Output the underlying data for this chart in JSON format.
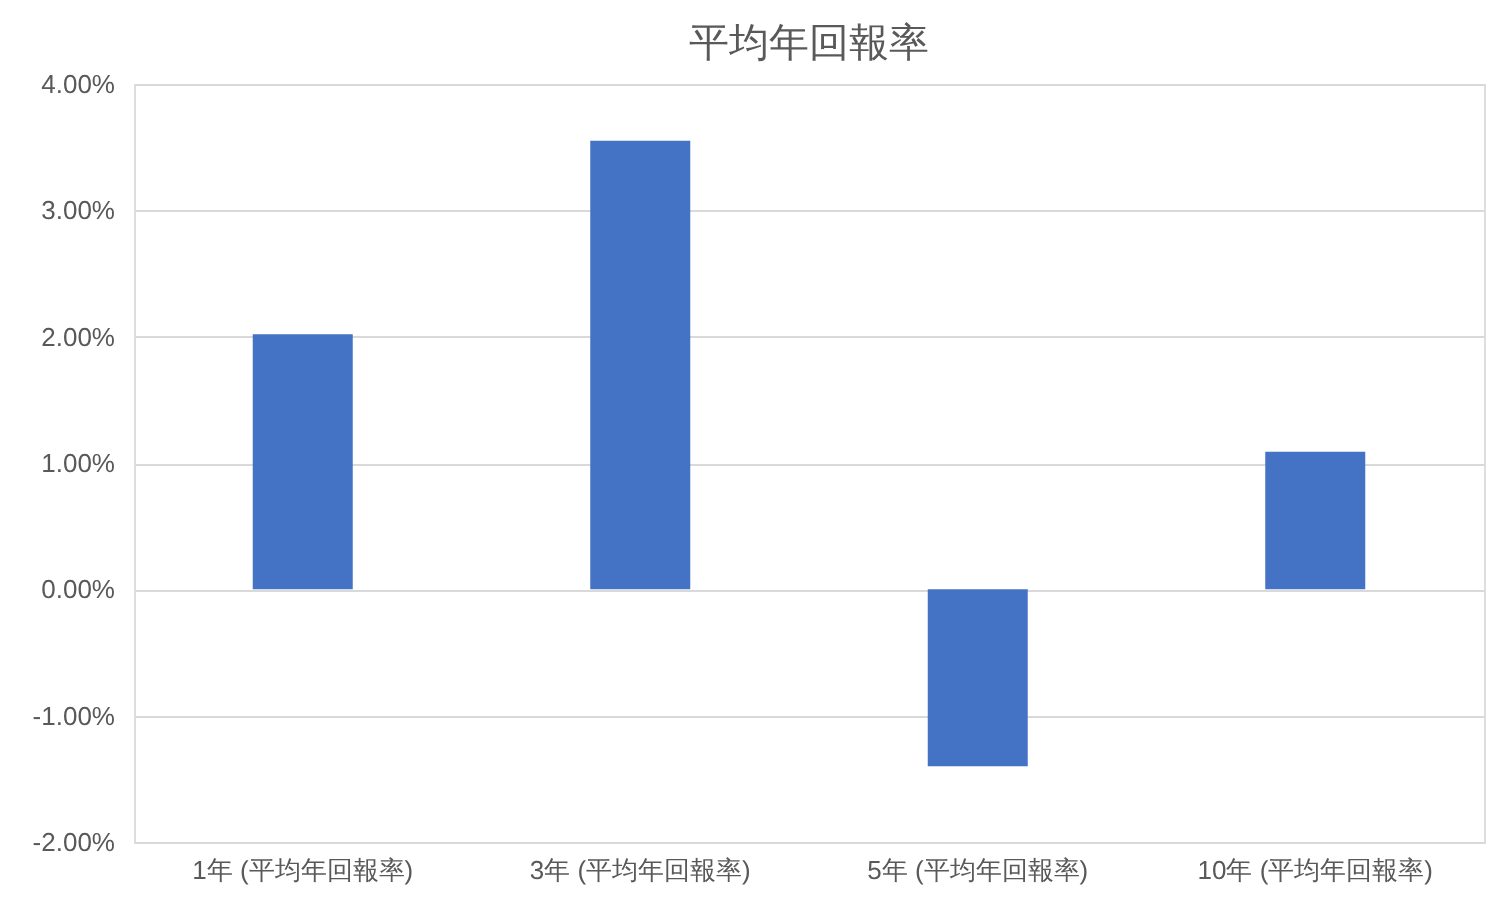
{
  "chart_data": {
    "type": "bar",
    "title": "平均年回報率",
    "categories": [
      "1年 (平均年回報率)",
      "3年 (平均年回報率)",
      "5年 (平均年回報率)",
      "10年 (平均年回報率)"
    ],
    "values": [
      2.02,
      3.55,
      -1.4,
      1.09
    ],
    "color": "#4472c4",
    "ylim": [
      -2,
      4
    ],
    "yticks": [
      {
        "value": -2,
        "label": "-2.00%"
      },
      {
        "value": -1,
        "label": "-1.00%"
      },
      {
        "value": 0,
        "label": "0.00%"
      },
      {
        "value": 1,
        "label": "1.00%"
      },
      {
        "value": 2,
        "label": "2.00%"
      },
      {
        "value": 3,
        "label": "3.00%"
      },
      {
        "value": 4,
        "label": "4.00%"
      }
    ],
    "grid": "y"
  }
}
